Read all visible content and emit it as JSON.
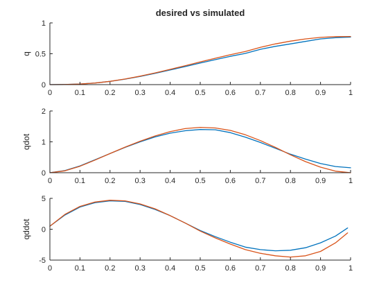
{
  "title": "desired vs simulated",
  "colors": {
    "axis": "#262626",
    "simulated": "#0072BD",
    "desired": "#D95319",
    "background": "#ffffff"
  },
  "chart_data": [
    {
      "type": "line",
      "ylabel": "q",
      "xlim": [
        0,
        1
      ],
      "ylim": [
        0,
        1
      ],
      "xticks": [
        0,
        0.1,
        0.2,
        0.3,
        0.4,
        0.5,
        0.6,
        0.7,
        0.8,
        0.9,
        1
      ],
      "xtick_labels": [
        "0",
        "0.1",
        "0.2",
        "0.3",
        "0.4",
        "0.5",
        "0.6",
        "0.7",
        "0.8",
        "0.9",
        "1"
      ],
      "yticks": [
        0,
        0.5,
        1
      ],
      "ytick_labels": [
        "0",
        "0.5",
        "1"
      ],
      "grid": false,
      "series": [
        {
          "color": "#0072BD",
          "x": [
            0,
            0.05,
            0.1,
            0.15,
            0.2,
            0.25,
            0.3,
            0.35,
            0.4,
            0.45,
            0.5,
            0.55,
            0.6,
            0.65,
            0.7,
            0.75,
            0.8,
            0.85,
            0.9,
            0.95,
            1.0
          ],
          "y": [
            0,
            0.002,
            0.009,
            0.026,
            0.053,
            0.089,
            0.133,
            0.183,
            0.237,
            0.292,
            0.349,
            0.405,
            0.458,
            0.506,
            0.572,
            0.62,
            0.66,
            0.7,
            0.74,
            0.76,
            0.77
          ]
        },
        {
          "color": "#D95319",
          "x": [
            0,
            0.05,
            0.1,
            0.15,
            0.2,
            0.25,
            0.3,
            0.35,
            0.4,
            0.45,
            0.5,
            0.55,
            0.6,
            0.65,
            0.7,
            0.75,
            0.8,
            0.85,
            0.9,
            0.95,
            1.0
          ],
          "y": [
            0,
            0.002,
            0.009,
            0.026,
            0.053,
            0.091,
            0.137,
            0.19,
            0.247,
            0.307,
            0.367,
            0.427,
            0.484,
            0.537,
            0.604,
            0.66,
            0.705,
            0.74,
            0.765,
            0.778,
            0.78
          ]
        }
      ]
    },
    {
      "type": "line",
      "ylabel": "qdot",
      "xlim": [
        0,
        1
      ],
      "ylim": [
        0,
        2
      ],
      "xticks": [
        0,
        0.1,
        0.2,
        0.3,
        0.4,
        0.5,
        0.6,
        0.7,
        0.8,
        0.9,
        1
      ],
      "xtick_labels": [
        "0",
        "0.1",
        "0.2",
        "0.3",
        "0.4",
        "0.5",
        "0.6",
        "0.7",
        "0.8",
        "0.9",
        "1"
      ],
      "yticks": [
        0,
        1,
        2
      ],
      "ytick_labels": [
        "0",
        "1",
        "2"
      ],
      "grid": false,
      "series": [
        {
          "color": "#0072BD",
          "x": [
            0,
            0.05,
            0.1,
            0.15,
            0.2,
            0.25,
            0.3,
            0.35,
            0.4,
            0.45,
            0.5,
            0.55,
            0.6,
            0.65,
            0.7,
            0.75,
            0.8,
            0.85,
            0.9,
            0.95,
            1.0
          ],
          "y": [
            0,
            0.07,
            0.22,
            0.42,
            0.62,
            0.82,
            1.0,
            1.16,
            1.28,
            1.36,
            1.4,
            1.39,
            1.3,
            1.15,
            0.98,
            0.79,
            0.6,
            0.44,
            0.3,
            0.2,
            0.16
          ]
        },
        {
          "color": "#D95319",
          "x": [
            0,
            0.05,
            0.1,
            0.15,
            0.2,
            0.25,
            0.3,
            0.35,
            0.4,
            0.45,
            0.5,
            0.55,
            0.6,
            0.65,
            0.7,
            0.75,
            0.8,
            0.85,
            0.9,
            0.95,
            1.0
          ],
          "y": [
            0,
            0.06,
            0.21,
            0.41,
            0.62,
            0.83,
            1.02,
            1.19,
            1.33,
            1.43,
            1.47,
            1.45,
            1.37,
            1.23,
            1.04,
            0.82,
            0.58,
            0.36,
            0.18,
            0.05,
            0
          ]
        }
      ]
    },
    {
      "type": "line",
      "ylabel": "qddot",
      "xlim": [
        0,
        1
      ],
      "ylim": [
        -5,
        5
      ],
      "xticks": [
        0,
        0.1,
        0.2,
        0.3,
        0.4,
        0.5,
        0.6,
        0.7,
        0.8,
        0.9,
        1
      ],
      "xtick_labels": [
        "0",
        "0.1",
        "0.2",
        "0.3",
        "0.4",
        "0.5",
        "0.6",
        "0.7",
        "0.8",
        "0.9",
        "1"
      ],
      "yticks": [
        -5,
        0,
        5
      ],
      "ytick_labels": [
        "-5",
        "0",
        "5"
      ],
      "grid": false,
      "series": [
        {
          "color": "#0072BD",
          "x": [
            0,
            0.05,
            0.1,
            0.15,
            0.2,
            0.25,
            0.3,
            0.35,
            0.4,
            0.45,
            0.5,
            0.55,
            0.6,
            0.65,
            0.7,
            0.75,
            0.8,
            0.85,
            0.9,
            0.95,
            0.99
          ],
          "y": [
            0.5,
            2.3,
            3.6,
            4.3,
            4.6,
            4.5,
            4.0,
            3.2,
            2.2,
            1.0,
            -0.2,
            -1.2,
            -2.1,
            -2.9,
            -3.3,
            -3.5,
            -3.4,
            -3.0,
            -2.2,
            -1.1,
            0.2
          ]
        },
        {
          "color": "#D95319",
          "x": [
            0,
            0.05,
            0.1,
            0.15,
            0.2,
            0.25,
            0.3,
            0.35,
            0.4,
            0.45,
            0.5,
            0.55,
            0.6,
            0.65,
            0.7,
            0.75,
            0.8,
            0.85,
            0.9,
            0.95,
            0.99
          ],
          "y": [
            0.5,
            2.4,
            3.7,
            4.4,
            4.7,
            4.6,
            4.1,
            3.3,
            2.2,
            1.0,
            -0.3,
            -1.4,
            -2.4,
            -3.3,
            -3.9,
            -4.3,
            -4.5,
            -4.3,
            -3.6,
            -2.2,
            -0.6
          ]
        }
      ]
    }
  ]
}
